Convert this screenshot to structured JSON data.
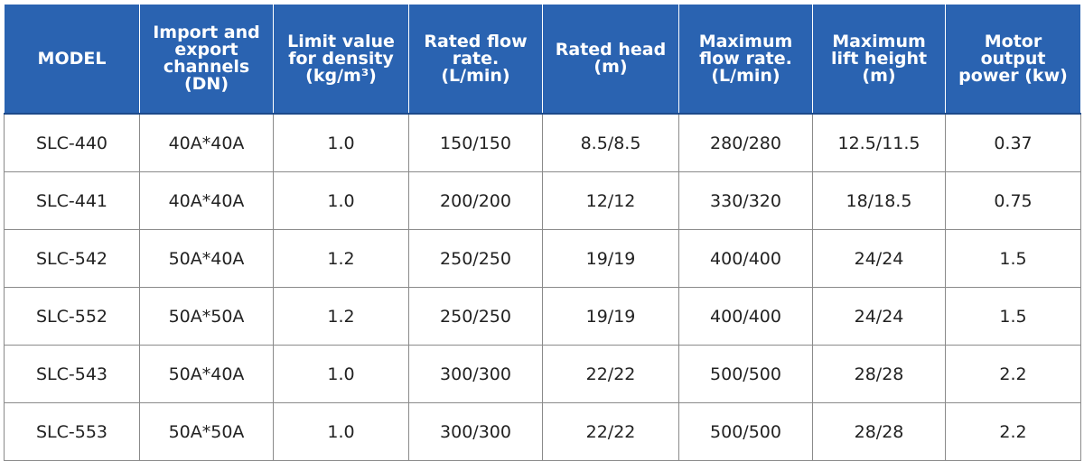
{
  "table": {
    "header": [
      [
        "MODEL"
      ],
      [
        "Import and",
        "export",
        "channels",
        "(DN)"
      ],
      [
        "Limit value",
        "for density",
        "(kg/m³)"
      ],
      [
        "Rated flow",
        "rate.",
        "(L/min)"
      ],
      [
        "Rated head",
        "(m)"
      ],
      [
        "Maximum",
        "flow rate.",
        "(L/min)"
      ],
      [
        "Maximum",
        "lift height",
        "(m)"
      ],
      [
        "Motor output",
        "power (kw)"
      ]
    ],
    "rows": [
      [
        "SLC-440",
        "40A*40A",
        "1.0",
        "150/150",
        "8.5/8.5",
        "280/280",
        "12.5/11.5",
        "0.37"
      ],
      [
        "SLC-441",
        "40A*40A",
        "1.0",
        "200/200",
        "12/12",
        "330/320",
        "18/18.5",
        "0.75"
      ],
      [
        "SLC-542",
        "50A*40A",
        "1.2",
        "250/250",
        "19/19",
        "400/400",
        "24/24",
        "1.5"
      ],
      [
        "SLC-552",
        "50A*50A",
        "1.2",
        "250/250",
        "19/19",
        "400/400",
        "24/24",
        "1.5"
      ],
      [
        "SLC-543",
        "50A*40A",
        "1.0",
        "300/300",
        "22/22",
        "500/500",
        "28/28",
        "2.2"
      ],
      [
        "SLC-553",
        "50A*50A",
        "1.0",
        "300/300",
        "22/22",
        "500/500",
        "28/28",
        "2.2"
      ]
    ]
  }
}
